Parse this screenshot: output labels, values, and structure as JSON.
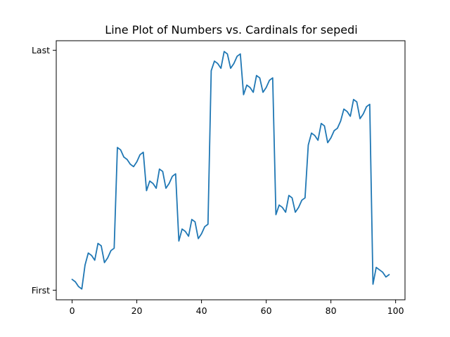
{
  "chart_data": {
    "type": "line",
    "title": "Line Plot of Numbers vs. Cardinals for sepedi",
    "xlabel": "",
    "ylabel": "",
    "xlim": [
      -4.9,
      102.9
    ],
    "ylim": [
      -0.04,
      1.04
    ],
    "grid": false,
    "legend": "none",
    "line_color": "#1f77b4",
    "x_ticks": [
      {
        "value": 0,
        "label": "0"
      },
      {
        "value": 20,
        "label": "20"
      },
      {
        "value": 40,
        "label": "40"
      },
      {
        "value": 60,
        "label": "60"
      },
      {
        "value": 80,
        "label": "80"
      },
      {
        "value": 100,
        "label": "100"
      }
    ],
    "y_ticks": [
      {
        "value": 0,
        "label": "First"
      },
      {
        "value": 1,
        "label": "Last"
      }
    ],
    "series": [
      {
        "x": [
          0,
          1,
          2,
          3,
          4,
          5,
          6,
          7,
          8,
          9,
          10,
          11,
          12,
          13,
          14,
          15,
          16,
          17,
          18,
          19,
          20,
          21,
          22,
          23,
          24,
          25,
          26,
          27,
          28,
          29,
          30,
          31,
          32,
          33,
          34,
          35,
          36,
          37,
          38,
          39,
          40,
          41,
          42,
          43,
          44,
          45,
          46,
          47,
          48,
          49,
          50,
          51,
          52,
          53,
          54,
          55,
          56,
          57,
          58,
          59,
          60,
          61,
          62,
          63,
          64,
          65,
          66,
          67,
          68,
          69,
          70,
          71,
          72,
          73,
          74,
          75,
          76,
          77,
          78,
          79,
          80,
          81,
          82,
          83,
          84,
          85,
          86,
          87,
          88,
          89,
          90,
          91,
          92,
          93,
          94,
          95,
          96,
          97,
          98
        ],
        "y": [
          0.045,
          0.035,
          0.015,
          0.005,
          0.105,
          0.155,
          0.145,
          0.125,
          0.195,
          0.185,
          0.115,
          0.135,
          0.165,
          0.175,
          0.595,
          0.585,
          0.555,
          0.545,
          0.525,
          0.515,
          0.535,
          0.565,
          0.575,
          0.415,
          0.455,
          0.445,
          0.425,
          0.505,
          0.495,
          0.425,
          0.445,
          0.475,
          0.485,
          0.205,
          0.255,
          0.245,
          0.225,
          0.295,
          0.285,
          0.215,
          0.235,
          0.265,
          0.275,
          0.915,
          0.955,
          0.945,
          0.925,
          0.995,
          0.985,
          0.925,
          0.945,
          0.975,
          0.985,
          0.815,
          0.855,
          0.845,
          0.825,
          0.895,
          0.885,
          0.825,
          0.845,
          0.875,
          0.885,
          0.315,
          0.355,
          0.345,
          0.325,
          0.395,
          0.385,
          0.325,
          0.345,
          0.375,
          0.385,
          0.605,
          0.655,
          0.645,
          0.625,
          0.695,
          0.685,
          0.615,
          0.635,
          0.665,
          0.675,
          0.705,
          0.755,
          0.745,
          0.725,
          0.795,
          0.785,
          0.715,
          0.735,
          0.765,
          0.775,
          0.025,
          0.095,
          0.085,
          0.075,
          0.055,
          0.065
        ]
      }
    ]
  }
}
